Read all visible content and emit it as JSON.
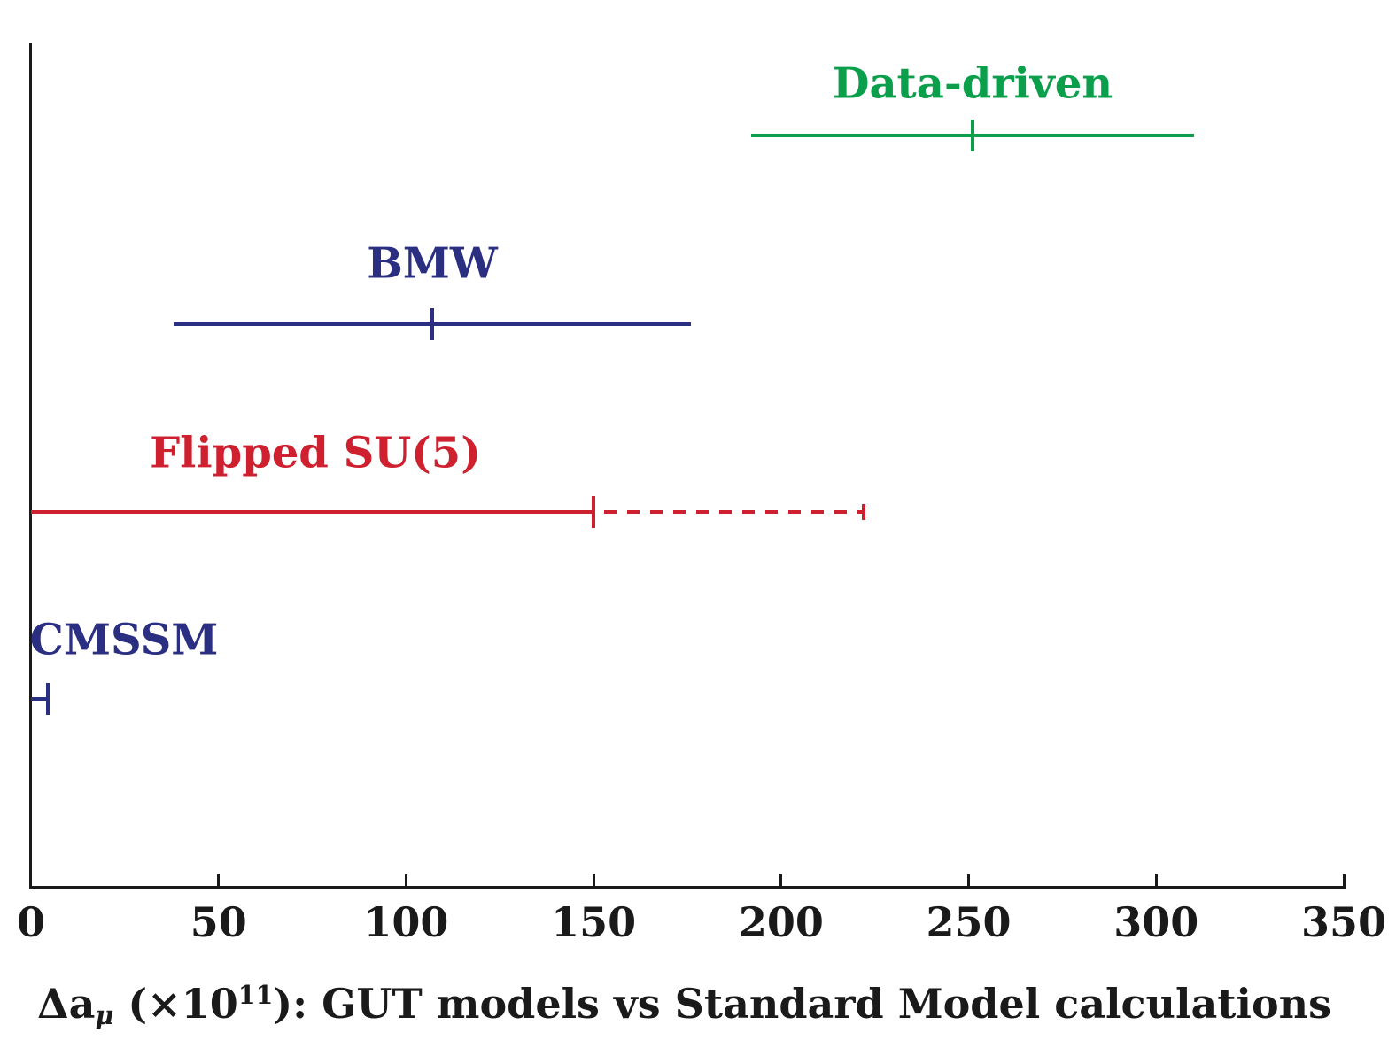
{
  "chart_data": {
    "type": "scatter",
    "subtype": "horizontal-error-bars",
    "title": {
      "plain": "Δa_μ (×10^11): GUT models vs Standard Model calculations",
      "prefix": "Δa",
      "sub": "μ",
      "mid": " (×10",
      "sup": "11",
      "rest": "): GUT models vs Standard Model calculations"
    },
    "xlabel": "Δa_μ (×10^11)",
    "ylabel": "",
    "xlim": [
      0,
      350
    ],
    "xticks": [
      0,
      50,
      100,
      150,
      200,
      250,
      300,
      350
    ],
    "grid": false,
    "legend_position": "labels-above-bars",
    "series": [
      {
        "name": "Data-driven",
        "color": "#0b9f4c",
        "min": 192,
        "center": 251,
        "max": 310,
        "line": "solid"
      },
      {
        "name": "BMW",
        "color": "#2b2f81",
        "min": 38,
        "center": 107,
        "max": 176,
        "line": "solid"
      },
      {
        "name": "Flipped SU(5)",
        "color": "#cf2030",
        "min": 0,
        "center": 150,
        "max": 222,
        "line": "solid-then-dashed",
        "dashed_from": 150,
        "right_end_cap": true
      },
      {
        "name": "CMSSM",
        "color": "#2b2f81",
        "min": 0,
        "center": 4.5,
        "max": 4.5,
        "line": "solid"
      }
    ],
    "colors": {
      "axis": "#1a1a1a",
      "background": "#ffffff"
    }
  }
}
